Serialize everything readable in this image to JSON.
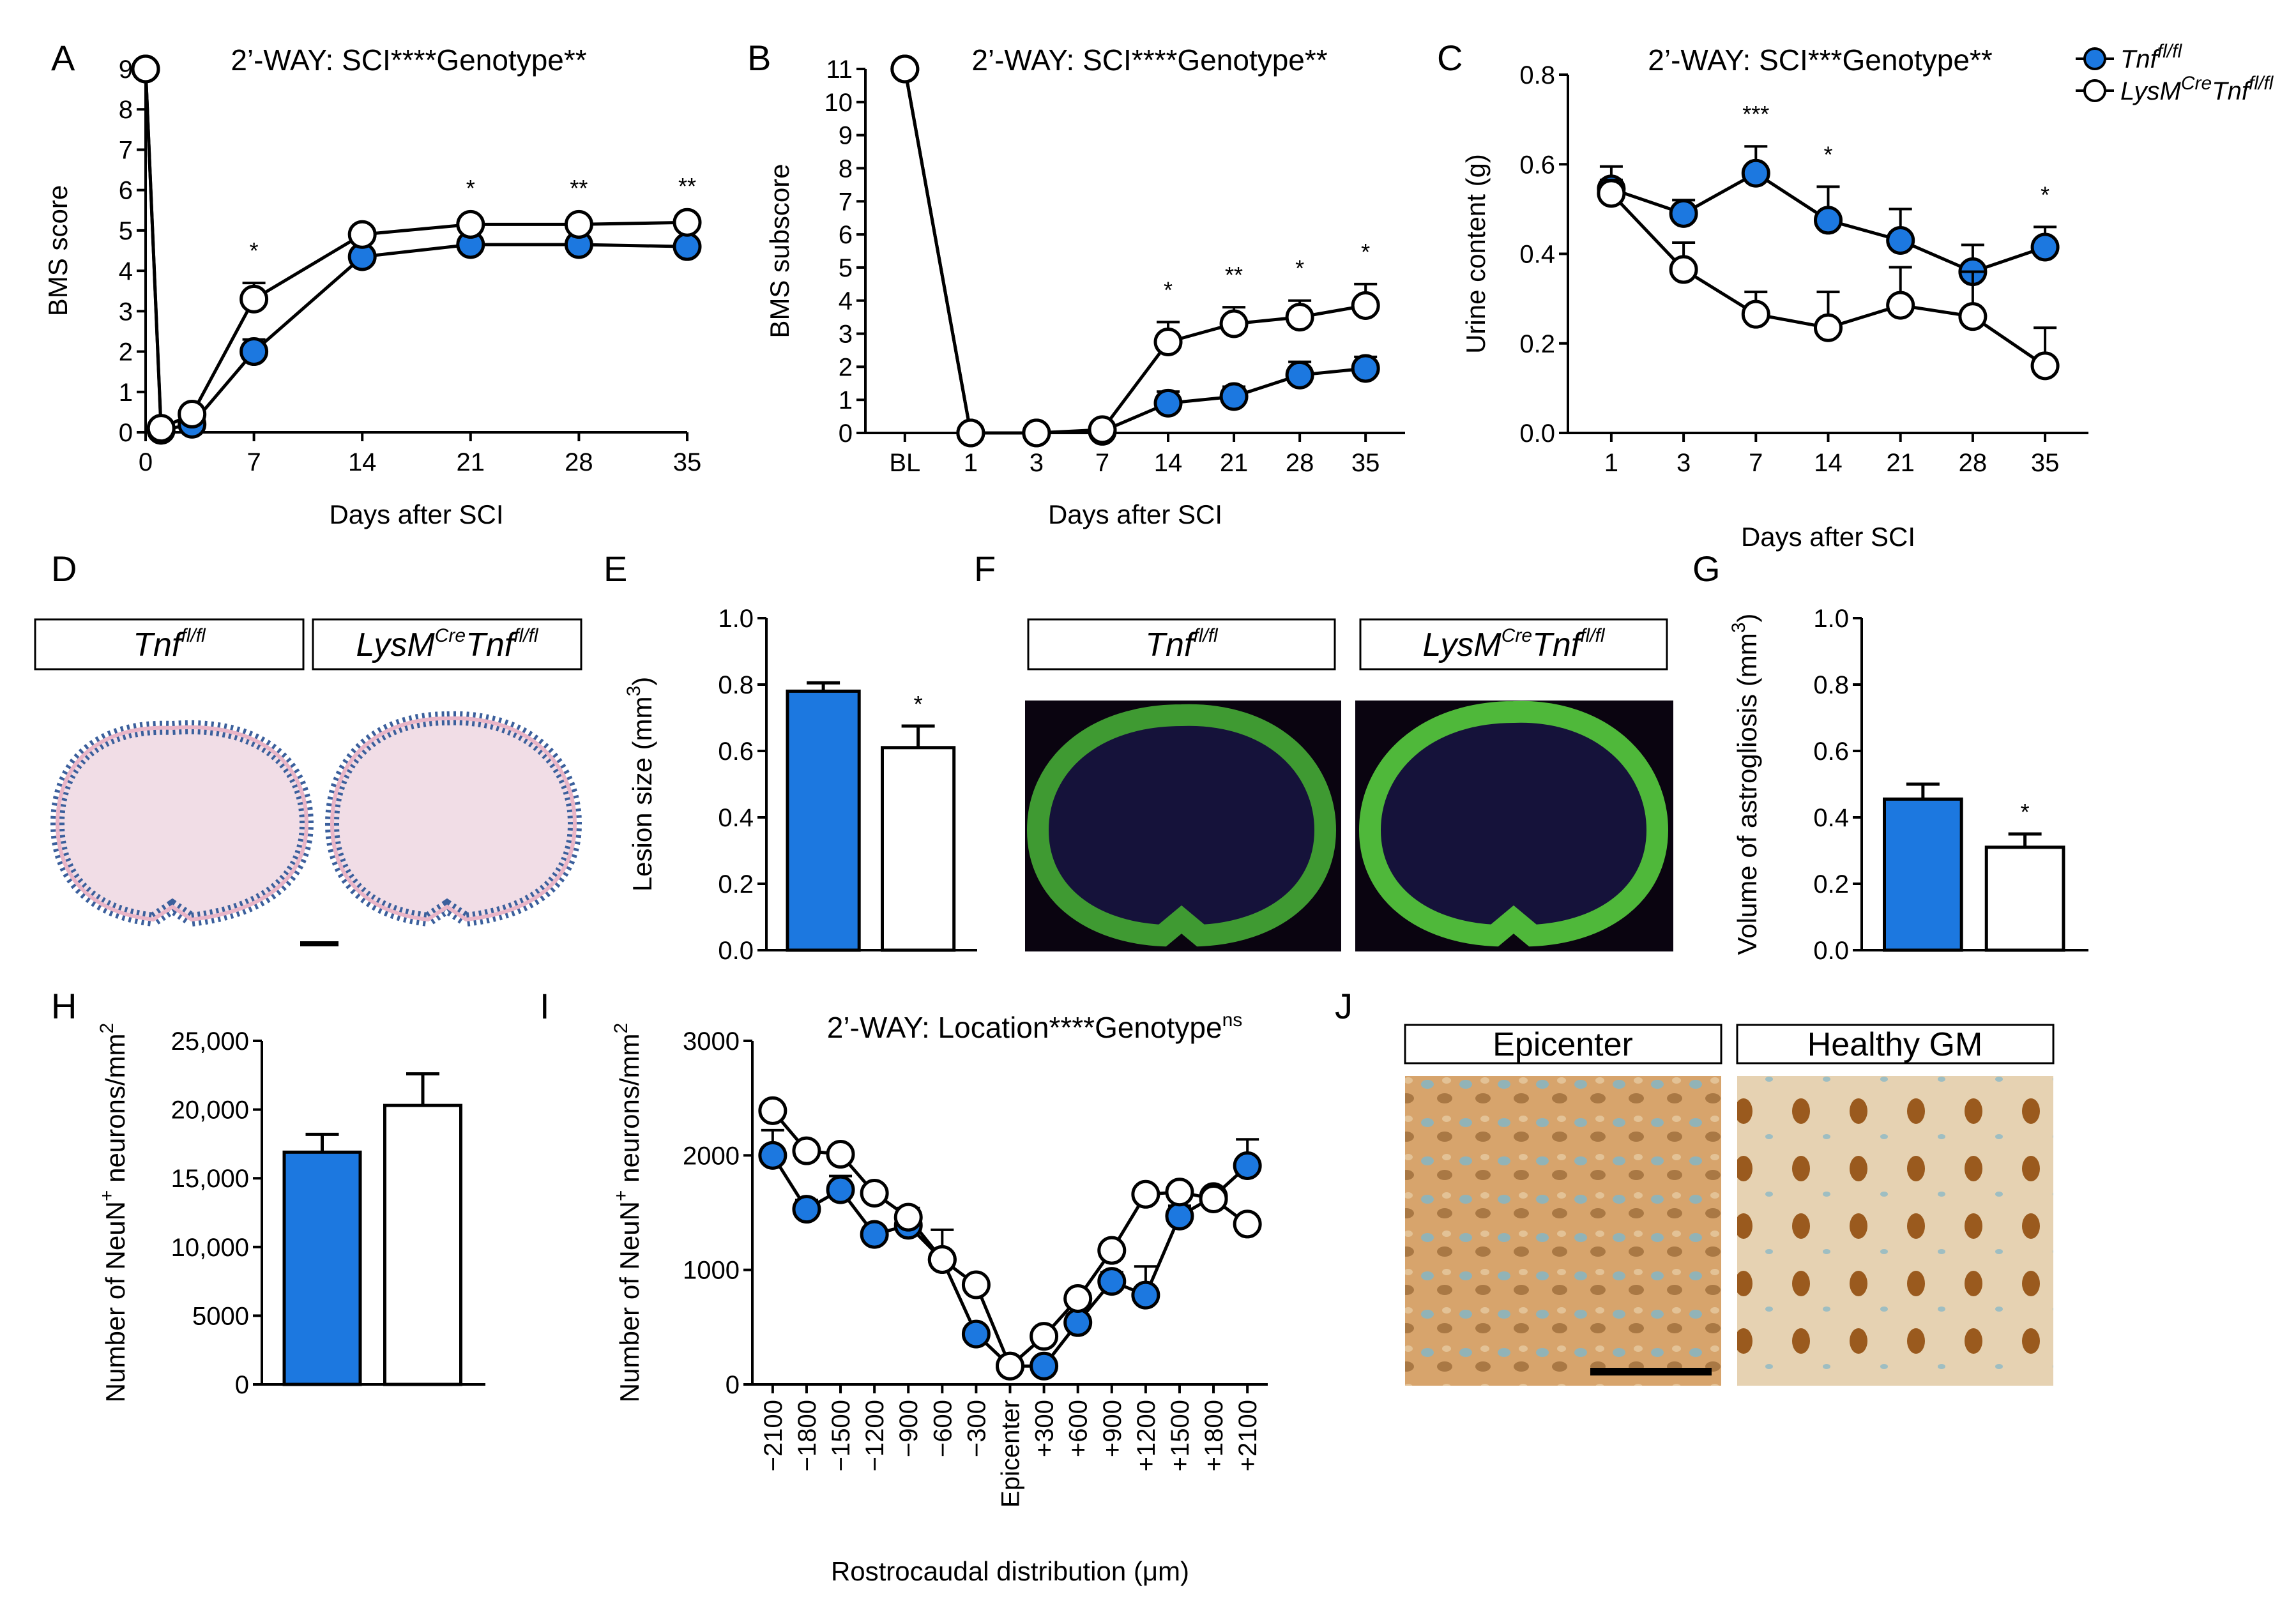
{
  "colors": {
    "blue": "#1c78e0",
    "black": "#000000",
    "white": "#ffffff"
  },
  "legend": {
    "tnf": "Tnf",
    "tnf_sup": "fl/fl",
    "lys_a": "LysM",
    "lys_sup1": "Cre",
    "lys_b": "Tnf",
    "lys_sup2": "fl/fl"
  },
  "boxes": {
    "tnf": "Tnf",
    "tnf_sup": "fl/fl",
    "lys_a": "LysM",
    "lys_sup1": "Cre",
    "lys_b": "Tnf",
    "lys_sup2": "fl/fl",
    "epicenter": "Epicenter",
    "healthy": "Healthy GM"
  },
  "chart_data": [
    {
      "panel": "A",
      "type": "line",
      "title": "2’-WAY: SCI****Genotype**",
      "xlabel": "Days after SCI",
      "ylabel": "BMS score",
      "xlim": [
        0,
        35
      ],
      "ylim": [
        0,
        9
      ],
      "xticks": [
        "0",
        "7",
        "14",
        "21",
        "28",
        "35"
      ],
      "yticks": [
        "0",
        "1",
        "2",
        "3",
        "4",
        "5",
        "6",
        "7",
        "8",
        "9"
      ],
      "x": [
        0,
        1,
        3,
        7,
        14,
        21,
        28,
        35
      ],
      "series": [
        {
          "name": "Tnf fl/fl",
          "values": [
            9,
            0.05,
            0.2,
            2.0,
            4.35,
            4.65,
            4.65,
            4.6
          ],
          "errors": [
            0,
            0,
            0,
            0.3,
            0.1,
            0.1,
            0.1,
            0.1
          ]
        },
        {
          "name": "LysMCre Tnf fl/fl",
          "values": [
            9,
            0.1,
            0.45,
            3.3,
            4.9,
            5.15,
            5.15,
            5.2
          ],
          "errors": [
            0,
            0,
            0,
            0.4,
            0.1,
            0.1,
            0.1,
            0.1
          ]
        }
      ],
      "annotations": [
        {
          "x": 7,
          "text": "*"
        },
        {
          "x": 21,
          "text": "*"
        },
        {
          "x": 28,
          "text": "**"
        },
        {
          "x": 35,
          "text": "**"
        }
      ]
    },
    {
      "panel": "B",
      "type": "line",
      "title": "2’-WAY: SCI****Genotype**",
      "xlabel": "Days after SCI",
      "ylabel": "BMS subscore",
      "ylim": [
        0,
        11
      ],
      "categories": [
        "BL",
        "1",
        "3",
        "7",
        "14",
        "21",
        "28",
        "35"
      ],
      "yticks": [
        "0",
        "1",
        "2",
        "3",
        "4",
        "5",
        "6",
        "7",
        "8",
        "9",
        "10",
        "11"
      ],
      "series": [
        {
          "name": "Tnf fl/fl",
          "values": [
            11,
            0,
            0,
            0.05,
            0.9,
            1.1,
            1.75,
            1.95
          ],
          "errors": [
            0,
            0,
            0,
            0,
            0.35,
            0.3,
            0.4,
            0.35
          ]
        },
        {
          "name": "LysMCre Tnf fl/fl",
          "values": [
            11,
            0,
            0,
            0.1,
            2.75,
            3.3,
            3.5,
            3.85
          ],
          "errors": [
            0,
            0,
            0,
            0,
            0.6,
            0.5,
            0.5,
            0.65
          ]
        }
      ],
      "annotations": [
        {
          "x": "14",
          "text": "*"
        },
        {
          "x": "21",
          "text": "**"
        },
        {
          "x": "28",
          "text": "*"
        },
        {
          "x": "35",
          "text": "*"
        }
      ]
    },
    {
      "panel": "C",
      "type": "line",
      "title": "2’-WAY: SCI***Genotype**",
      "xlabel": "Days after SCI",
      "ylabel": "Urine content (g)",
      "ylim": [
        0,
        0.8
      ],
      "categories": [
        "1",
        "3",
        "7",
        "14",
        "21",
        "28",
        "35"
      ],
      "yticks": [
        "0.0",
        "0.2",
        "0.4",
        "0.6",
        "0.8"
      ],
      "series": [
        {
          "name": "Tnf fl/fl",
          "values": [
            0.545,
            0.49,
            0.58,
            0.475,
            0.43,
            0.36,
            0.415
          ],
          "errors": [
            0.05,
            0.03,
            0.06,
            0.075,
            0.07,
            0.06,
            0.045
          ]
        },
        {
          "name": "LysMCre Tnf fl/fl",
          "values": [
            0.535,
            0.365,
            0.265,
            0.235,
            0.285,
            0.26,
            0.15
          ],
          "errors": [
            0.03,
            0.06,
            0.05,
            0.08,
            0.085,
            0.1,
            0.085
          ]
        }
      ],
      "annotations": [
        {
          "x": "7",
          "text": "***"
        },
        {
          "x": "14",
          "text": "*"
        },
        {
          "x": "35",
          "text": "*"
        }
      ]
    },
    {
      "panel": "E",
      "type": "bar",
      "ylabel": "Lesion size (mm",
      "ylabel_sup": "3",
      "ylabel_end": ")",
      "ylim": [
        0,
        1.0
      ],
      "yticks": [
        "0.0",
        "0.2",
        "0.4",
        "0.6",
        "0.8",
        "1.0"
      ],
      "categories": [
        "Tnf fl/fl",
        "LysMCre Tnf fl/fl"
      ],
      "values": [
        0.78,
        0.61
      ],
      "errors": [
        0.025,
        0.065
      ],
      "annotations": [
        {
          "x": 1,
          "text": "*"
        }
      ]
    },
    {
      "panel": "G",
      "type": "bar",
      "ylabel": "Volume of astrogliosis (mm",
      "ylabel_sup": "3",
      "ylabel_end": ")",
      "ylim": [
        0,
        1.0
      ],
      "yticks": [
        "0.0",
        "0.2",
        "0.4",
        "0.6",
        "0.8",
        "1.0"
      ],
      "categories": [
        "Tnf fl/fl",
        "LysMCre Tnf fl/fl"
      ],
      "values": [
        0.455,
        0.31
      ],
      "errors": [
        0.045,
        0.04
      ],
      "annotations": [
        {
          "x": 1,
          "text": "*"
        }
      ]
    },
    {
      "panel": "H",
      "type": "bar",
      "ylabel": "Number of NeuN",
      "ylabel_sup": "+",
      "ylabel_end": " neurons/mm",
      "ylabel_sup2": "2",
      "ylim": [
        0,
        25000
      ],
      "yticks": [
        "0",
        "5000",
        "10,000",
        "15,000",
        "20,000",
        "25,000"
      ],
      "categories": [
        "Tnf fl/fl",
        "LysMCre Tnf fl/fl"
      ],
      "values": [
        16900,
        20300
      ],
      "errors": [
        1300,
        2300
      ]
    },
    {
      "panel": "I",
      "type": "line",
      "title": "2’-WAY: Location****Genotype",
      "title_sup": "ns",
      "xlabel": "Rostrocaudal distribution (μm)",
      "ylabel": "Number of NeuN",
      "ylabel_sup": "+",
      "ylabel_end": " neurons/mm",
      "ylabel_sup2": "2",
      "ylim": [
        0,
        3000
      ],
      "yticks": [
        "0",
        "1000",
        "2000",
        "3000"
      ],
      "categories": [
        "−2100",
        "−1800",
        "−1500",
        "−1200",
        "−900",
        "−600",
        "−300",
        "Epicenter",
        "+300",
        "+600",
        "+900",
        "+1200",
        "+1500",
        "+1800",
        "+2100"
      ],
      "series": [
        {
          "name": "Tnf fl/fl",
          "values": [
            2000,
            1530,
            1700,
            1310,
            1390,
            1090,
            440,
            160,
            160,
            540,
            900,
            780,
            1470,
            1640,
            1910
          ],
          "errors": [
            220,
            80,
            120,
            60,
            150,
            260,
            60,
            20,
            20,
            70,
            80,
            250,
            90,
            60,
            230
          ]
        },
        {
          "name": "LysMCre Tnf fl/fl",
          "values": [
            2390,
            2040,
            2010,
            1670,
            1460,
            1090,
            870,
            160,
            420,
            750,
            1170,
            1660,
            1680,
            1620,
            1400
          ],
          "errors": [
            40,
            20,
            40,
            20,
            80,
            40,
            40,
            20,
            40,
            40,
            40,
            30,
            30,
            30,
            40
          ]
        }
      ]
    }
  ],
  "panels": {
    "a": "A",
    "b": "B",
    "c": "C",
    "d": "D",
    "e": "E",
    "f": "F",
    "g": "G",
    "h": "H",
    "i": "I",
    "j": "J"
  }
}
